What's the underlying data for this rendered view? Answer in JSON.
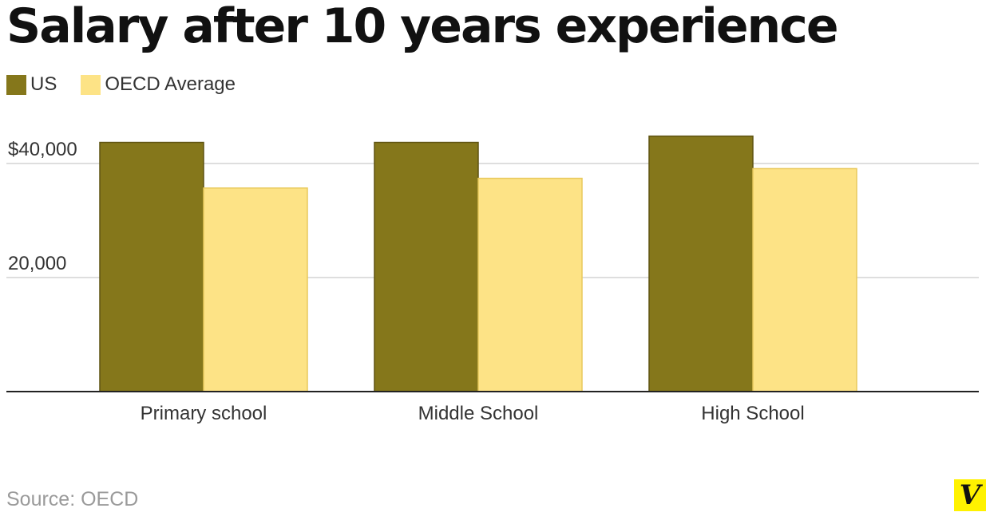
{
  "chart_data": {
    "type": "bar",
    "title": "Salary after 10 years experience",
    "categories": [
      "Primary school",
      "Middle School",
      "High School"
    ],
    "series": [
      {
        "name": "US",
        "values": [
          43700,
          43700,
          44800
        ],
        "color": "#85771b"
      },
      {
        "name": "OECD Average",
        "values": [
          35700,
          37400,
          39100
        ],
        "color": "#fde386"
      }
    ],
    "ylim": [
      0,
      40000
    ],
    "yticks": [
      {
        "value": 40000,
        "label": "$40,000"
      },
      {
        "value": 20000,
        "label": "20,000"
      }
    ],
    "grid": true,
    "legend_position": "top-left",
    "source": "Source: OECD",
    "logo_letter": "V"
  }
}
